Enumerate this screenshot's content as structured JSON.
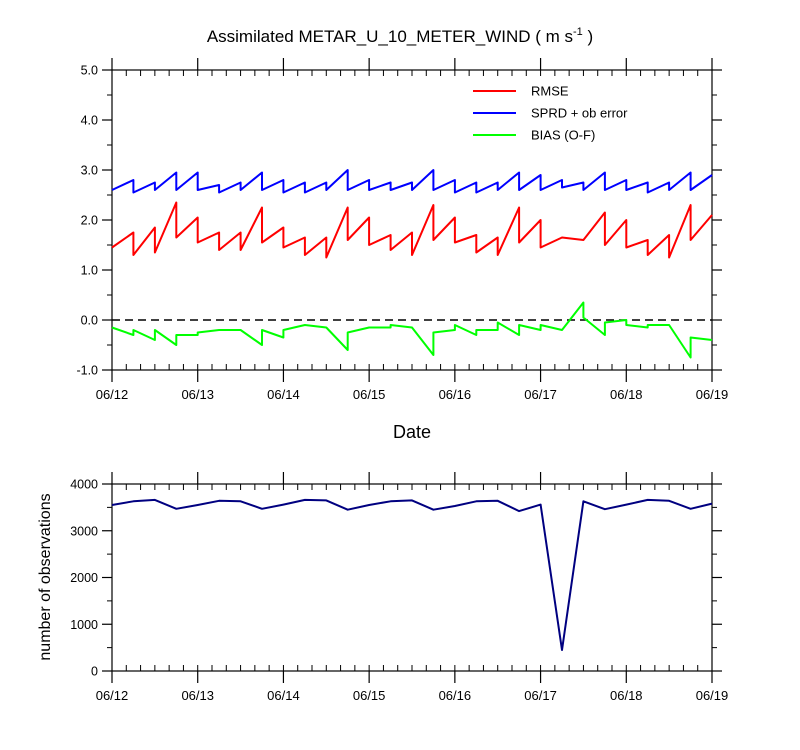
{
  "chart_data": [
    {
      "type": "line",
      "title": "Assimilated METAR_U_10_METER_WIND ( m s",
      "title_superscript": "-1",
      "title_close": " )",
      "xlabel": "Date",
      "ylabel": "",
      "xlim": [
        0,
        7
      ],
      "ylim": [
        -1.0,
        5.0
      ],
      "yticks": [
        -1.0,
        0.0,
        1.0,
        2.0,
        3.0,
        4.0,
        5.0
      ],
      "ytick_labels": [
        "-1.0",
        "0.0",
        "1.0",
        "2.0",
        "3.0",
        "4.0",
        "5.0"
      ],
      "xtick_values": [
        0,
        1,
        2,
        3,
        4,
        5,
        6,
        7
      ],
      "xtick_labels": [
        "06/12",
        "06/13",
        "06/14",
        "06/15",
        "06/16",
        "06/17",
        "06/18",
        "06/19"
      ],
      "reference_line": 0.0,
      "legend_position": "top-right",
      "series": [
        {
          "name": "RMSE",
          "color": "#ff0000",
          "points": [
            [
              0,
              1.45
            ],
            [
              0.25,
              1.75
            ],
            [
              0.25,
              1.3
            ],
            [
              0.5,
              1.85
            ],
            [
              0.5,
              1.35
            ],
            [
              0.75,
              2.35
            ],
            [
              0.75,
              1.65
            ],
            [
              1.0,
              2.05
            ],
            [
              1.0,
              1.55
            ],
            [
              1.25,
              1.75
            ],
            [
              1.25,
              1.4
            ],
            [
              1.5,
              1.75
            ],
            [
              1.5,
              1.4
            ],
            [
              1.75,
              2.25
            ],
            [
              1.75,
              1.55
            ],
            [
              2.0,
              1.85
            ],
            [
              2.0,
              1.45
            ],
            [
              2.25,
              1.65
            ],
            [
              2.25,
              1.3
            ],
            [
              2.5,
              1.65
            ],
            [
              2.5,
              1.25
            ],
            [
              2.75,
              2.25
            ],
            [
              2.75,
              1.6
            ],
            [
              3.0,
              2.05
            ],
            [
              3.0,
              1.5
            ],
            [
              3.25,
              1.7
            ],
            [
              3.25,
              1.4
            ],
            [
              3.5,
              1.75
            ],
            [
              3.5,
              1.3
            ],
            [
              3.75,
              2.3
            ],
            [
              3.75,
              1.6
            ],
            [
              4.0,
              2.05
            ],
            [
              4.0,
              1.55
            ],
            [
              4.25,
              1.7
            ],
            [
              4.25,
              1.35
            ],
            [
              4.5,
              1.65
            ],
            [
              4.5,
              1.3
            ],
            [
              4.75,
              2.25
            ],
            [
              4.75,
              1.55
            ],
            [
              5.0,
              2.0
            ],
            [
              5.0,
              1.45
            ],
            [
              5.25,
              1.65
            ],
            [
              5.25,
              1.65
            ],
            [
              5.5,
              1.6
            ],
            [
              5.75,
              2.15
            ],
            [
              5.75,
              1.5
            ],
            [
              6.0,
              2.0
            ],
            [
              6.0,
              1.45
            ],
            [
              6.25,
              1.6
            ],
            [
              6.25,
              1.3
            ],
            [
              6.5,
              1.7
            ],
            [
              6.5,
              1.25
            ],
            [
              6.75,
              2.3
            ],
            [
              6.75,
              1.6
            ],
            [
              7.0,
              2.1
            ]
          ]
        },
        {
          "name": "SPRD + ob error",
          "color": "#0000ff",
          "points": [
            [
              0,
              2.6
            ],
            [
              0.25,
              2.8
            ],
            [
              0.25,
              2.55
            ],
            [
              0.5,
              2.75
            ],
            [
              0.5,
              2.6
            ],
            [
              0.75,
              2.95
            ],
            [
              0.75,
              2.6
            ],
            [
              1.0,
              2.95
            ],
            [
              1.0,
              2.6
            ],
            [
              1.25,
              2.7
            ],
            [
              1.25,
              2.55
            ],
            [
              1.5,
              2.75
            ],
            [
              1.5,
              2.6
            ],
            [
              1.75,
              2.95
            ],
            [
              1.75,
              2.6
            ],
            [
              2.0,
              2.8
            ],
            [
              2.0,
              2.55
            ],
            [
              2.25,
              2.75
            ],
            [
              2.25,
              2.55
            ],
            [
              2.5,
              2.75
            ],
            [
              2.5,
              2.6
            ],
            [
              2.75,
              3.0
            ],
            [
              2.75,
              2.6
            ],
            [
              3.0,
              2.8
            ],
            [
              3.0,
              2.6
            ],
            [
              3.25,
              2.75
            ],
            [
              3.25,
              2.6
            ],
            [
              3.5,
              2.75
            ],
            [
              3.5,
              2.6
            ],
            [
              3.75,
              3.0
            ],
            [
              3.75,
              2.6
            ],
            [
              4.0,
              2.8
            ],
            [
              4.0,
              2.55
            ],
            [
              4.25,
              2.75
            ],
            [
              4.25,
              2.55
            ],
            [
              4.5,
              2.75
            ],
            [
              4.5,
              2.6
            ],
            [
              4.75,
              2.95
            ],
            [
              4.75,
              2.6
            ],
            [
              5.0,
              2.9
            ],
            [
              5.0,
              2.6
            ],
            [
              5.25,
              2.8
            ],
            [
              5.25,
              2.65
            ],
            [
              5.5,
              2.75
            ],
            [
              5.5,
              2.6
            ],
            [
              5.75,
              2.95
            ],
            [
              5.75,
              2.6
            ],
            [
              6.0,
              2.8
            ],
            [
              6.0,
              2.6
            ],
            [
              6.25,
              2.75
            ],
            [
              6.25,
              2.55
            ],
            [
              6.5,
              2.75
            ],
            [
              6.5,
              2.6
            ],
            [
              6.75,
              2.95
            ],
            [
              6.75,
              2.6
            ],
            [
              7.0,
              2.9
            ]
          ]
        },
        {
          "name": "BIAS (O-F)",
          "color": "#00ff00",
          "points": [
            [
              0,
              -0.15
            ],
            [
              0.25,
              -0.3
            ],
            [
              0.25,
              -0.2
            ],
            [
              0.5,
              -0.4
            ],
            [
              0.5,
              -0.2
            ],
            [
              0.75,
              -0.5
            ],
            [
              0.75,
              -0.3
            ],
            [
              1.0,
              -0.3
            ],
            [
              1.0,
              -0.25
            ],
            [
              1.25,
              -0.2
            ],
            [
              1.5,
              -0.2
            ],
            [
              1.75,
              -0.5
            ],
            [
              1.75,
              -0.2
            ],
            [
              2.0,
              -0.35
            ],
            [
              2.0,
              -0.2
            ],
            [
              2.25,
              -0.1
            ],
            [
              2.5,
              -0.15
            ],
            [
              2.75,
              -0.6
            ],
            [
              2.75,
              -0.25
            ],
            [
              3.0,
              -0.15
            ],
            [
              3.25,
              -0.15
            ],
            [
              3.25,
              -0.1
            ],
            [
              3.5,
              -0.15
            ],
            [
              3.75,
              -0.7
            ],
            [
              3.75,
              -0.25
            ],
            [
              4.0,
              -0.2
            ],
            [
              4.0,
              -0.1
            ],
            [
              4.25,
              -0.3
            ],
            [
              4.25,
              -0.2
            ],
            [
              4.5,
              -0.2
            ],
            [
              4.5,
              -0.05
            ],
            [
              4.75,
              -0.3
            ],
            [
              4.75,
              -0.1
            ],
            [
              5.0,
              -0.2
            ],
            [
              5.0,
              -0.1
            ],
            [
              5.25,
              -0.2
            ],
            [
              5.5,
              0.35
            ],
            [
              5.5,
              0.05
            ],
            [
              5.75,
              -0.3
            ],
            [
              5.75,
              -0.05
            ],
            [
              6.0,
              0.0
            ],
            [
              6.0,
              -0.1
            ],
            [
              6.25,
              -0.15
            ],
            [
              6.25,
              -0.1
            ],
            [
              6.5,
              -0.1
            ],
            [
              6.75,
              -0.75
            ],
            [
              6.75,
              -0.35
            ],
            [
              7.0,
              -0.4
            ]
          ]
        }
      ]
    },
    {
      "type": "line",
      "title": "",
      "xlabel": "",
      "ylabel": "number of observations",
      "xlim": [
        0,
        7
      ],
      "ylim": [
        0,
        4000
      ],
      "yticks": [
        0,
        1000,
        2000,
        3000,
        4000
      ],
      "ytick_labels": [
        "0",
        "1000",
        "2000",
        "3000",
        "4000"
      ],
      "xtick_values": [
        0,
        1,
        2,
        3,
        4,
        5,
        6,
        7
      ],
      "xtick_labels": [
        "06/12",
        "06/13",
        "06/14",
        "06/15",
        "06/16",
        "06/17",
        "06/18",
        "06/19"
      ],
      "series": [
        {
          "name": "observations",
          "color": "#000080",
          "points": [
            [
              0,
              3550
            ],
            [
              0.25,
              3630
            ],
            [
              0.5,
              3660
            ],
            [
              0.75,
              3470
            ],
            [
              1.0,
              3550
            ],
            [
              1.25,
              3640
            ],
            [
              1.5,
              3630
            ],
            [
              1.75,
              3470
            ],
            [
              2.0,
              3560
            ],
            [
              2.25,
              3660
            ],
            [
              2.5,
              3650
            ],
            [
              2.75,
              3450
            ],
            [
              3.0,
              3550
            ],
            [
              3.25,
              3630
            ],
            [
              3.5,
              3650
            ],
            [
              3.75,
              3450
            ],
            [
              4.0,
              3530
            ],
            [
              4.25,
              3630
            ],
            [
              4.5,
              3640
            ],
            [
              4.75,
              3420
            ],
            [
              5.0,
              3560
            ],
            [
              5.25,
              450
            ],
            [
              5.5,
              3630
            ],
            [
              5.75,
              3460
            ],
            [
              6.0,
              3560
            ],
            [
              6.25,
              3660
            ],
            [
              6.5,
              3640
            ],
            [
              6.75,
              3470
            ],
            [
              7.0,
              3580
            ]
          ]
        }
      ]
    }
  ]
}
